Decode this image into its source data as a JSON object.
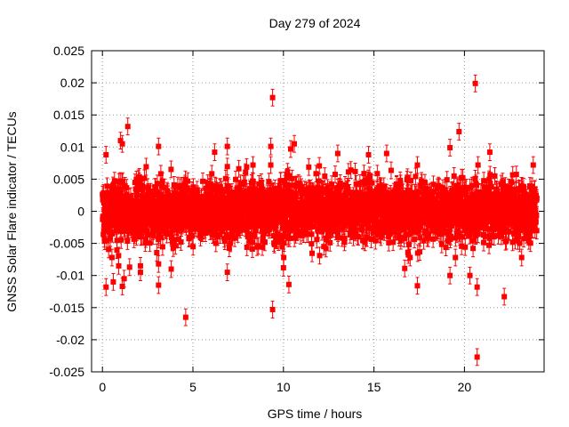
{
  "chart_data": {
    "type": "scatter",
    "title": "Day 279 of 2024",
    "xlabel": "GPS time / hours",
    "ylabel": "GNSS Solar Flare indicator / TECUs",
    "xlim": [
      -0.6,
      24.4
    ],
    "ylim": [
      -0.025,
      0.025
    ],
    "grid": true,
    "error_bars": true,
    "series_color": "#ff0000",
    "x_ticks": [
      {
        "value": 0,
        "label": "0"
      },
      {
        "value": 5,
        "label": "5"
      },
      {
        "value": 10,
        "label": "10"
      },
      {
        "value": 15,
        "label": "15"
      },
      {
        "value": 20,
        "label": "20"
      }
    ],
    "y_ticks": [
      {
        "value": 0.025,
        "label": "0.025"
      },
      {
        "value": 0.02,
        "label": "0.02"
      },
      {
        "value": 0.015,
        "label": "0.015"
      },
      {
        "value": 0.01,
        "label": "0.01"
      },
      {
        "value": 0.005,
        "label": "0.005"
      },
      {
        "value": 0,
        "label": "0"
      },
      {
        "value": -0.005,
        "label": "-0.005"
      },
      {
        "value": -0.01,
        "label": "-0.01"
      },
      {
        "value": -0.015,
        "label": "-0.015"
      },
      {
        "value": -0.02,
        "label": "-0.02"
      },
      {
        "value": -0.025,
        "label": "-0.025"
      }
    ],
    "series": [
      {
        "name": "solar flare indicator",
        "note": "dense band of ~2900 points (30 s cadence) mostly within ±0.005 TECU; notable outliers listed",
        "typical_error": 0.0013,
        "notable_points": [
          [
            0.2,
            0.0088
          ],
          [
            0.2,
            -0.0118
          ],
          [
            0.6,
            -0.011
          ],
          [
            0.9,
            -0.0085
          ],
          [
            1.0,
            0.011
          ],
          [
            1.1,
            0.0105
          ],
          [
            1.1,
            -0.0117
          ],
          [
            1.2,
            -0.0105
          ],
          [
            1.4,
            0.0132
          ],
          [
            1.5,
            -0.0087
          ],
          [
            2.1,
            -0.0095
          ],
          [
            2.1,
            -0.0085
          ],
          [
            3.1,
            -0.0115
          ],
          [
            3.1,
            -0.0082
          ],
          [
            3.1,
            0.0101
          ],
          [
            3.8,
            -0.009
          ],
          [
            4.6,
            -0.0165
          ],
          [
            6.2,
            0.0092
          ],
          [
            6.9,
            0.0101
          ],
          [
            6.9,
            -0.0095
          ],
          [
            9.3,
            0.0101
          ],
          [
            9.4,
            0.0177
          ],
          [
            9.4,
            -0.0153
          ],
          [
            10.0,
            -0.0088
          ],
          [
            10.3,
            -0.0114
          ],
          [
            10.4,
            0.0097
          ],
          [
            10.6,
            0.0105
          ],
          [
            13.0,
            0.009
          ],
          [
            14.7,
            0.0088
          ],
          [
            15.7,
            0.009
          ],
          [
            16.7,
            -0.0089
          ],
          [
            17.4,
            0.0072
          ],
          [
            17.4,
            -0.0116
          ],
          [
            19.2,
            0.0099
          ],
          [
            19.2,
            -0.01
          ],
          [
            19.7,
            0.0124
          ],
          [
            20.3,
            -0.01
          ],
          [
            20.6,
            0.0199
          ],
          [
            20.7,
            -0.0118
          ],
          [
            20.7,
            -0.0227
          ],
          [
            21.4,
            0.0092
          ],
          [
            22.2,
            -0.0133
          ],
          [
            23.8,
            0.0072
          ]
        ]
      }
    ]
  }
}
